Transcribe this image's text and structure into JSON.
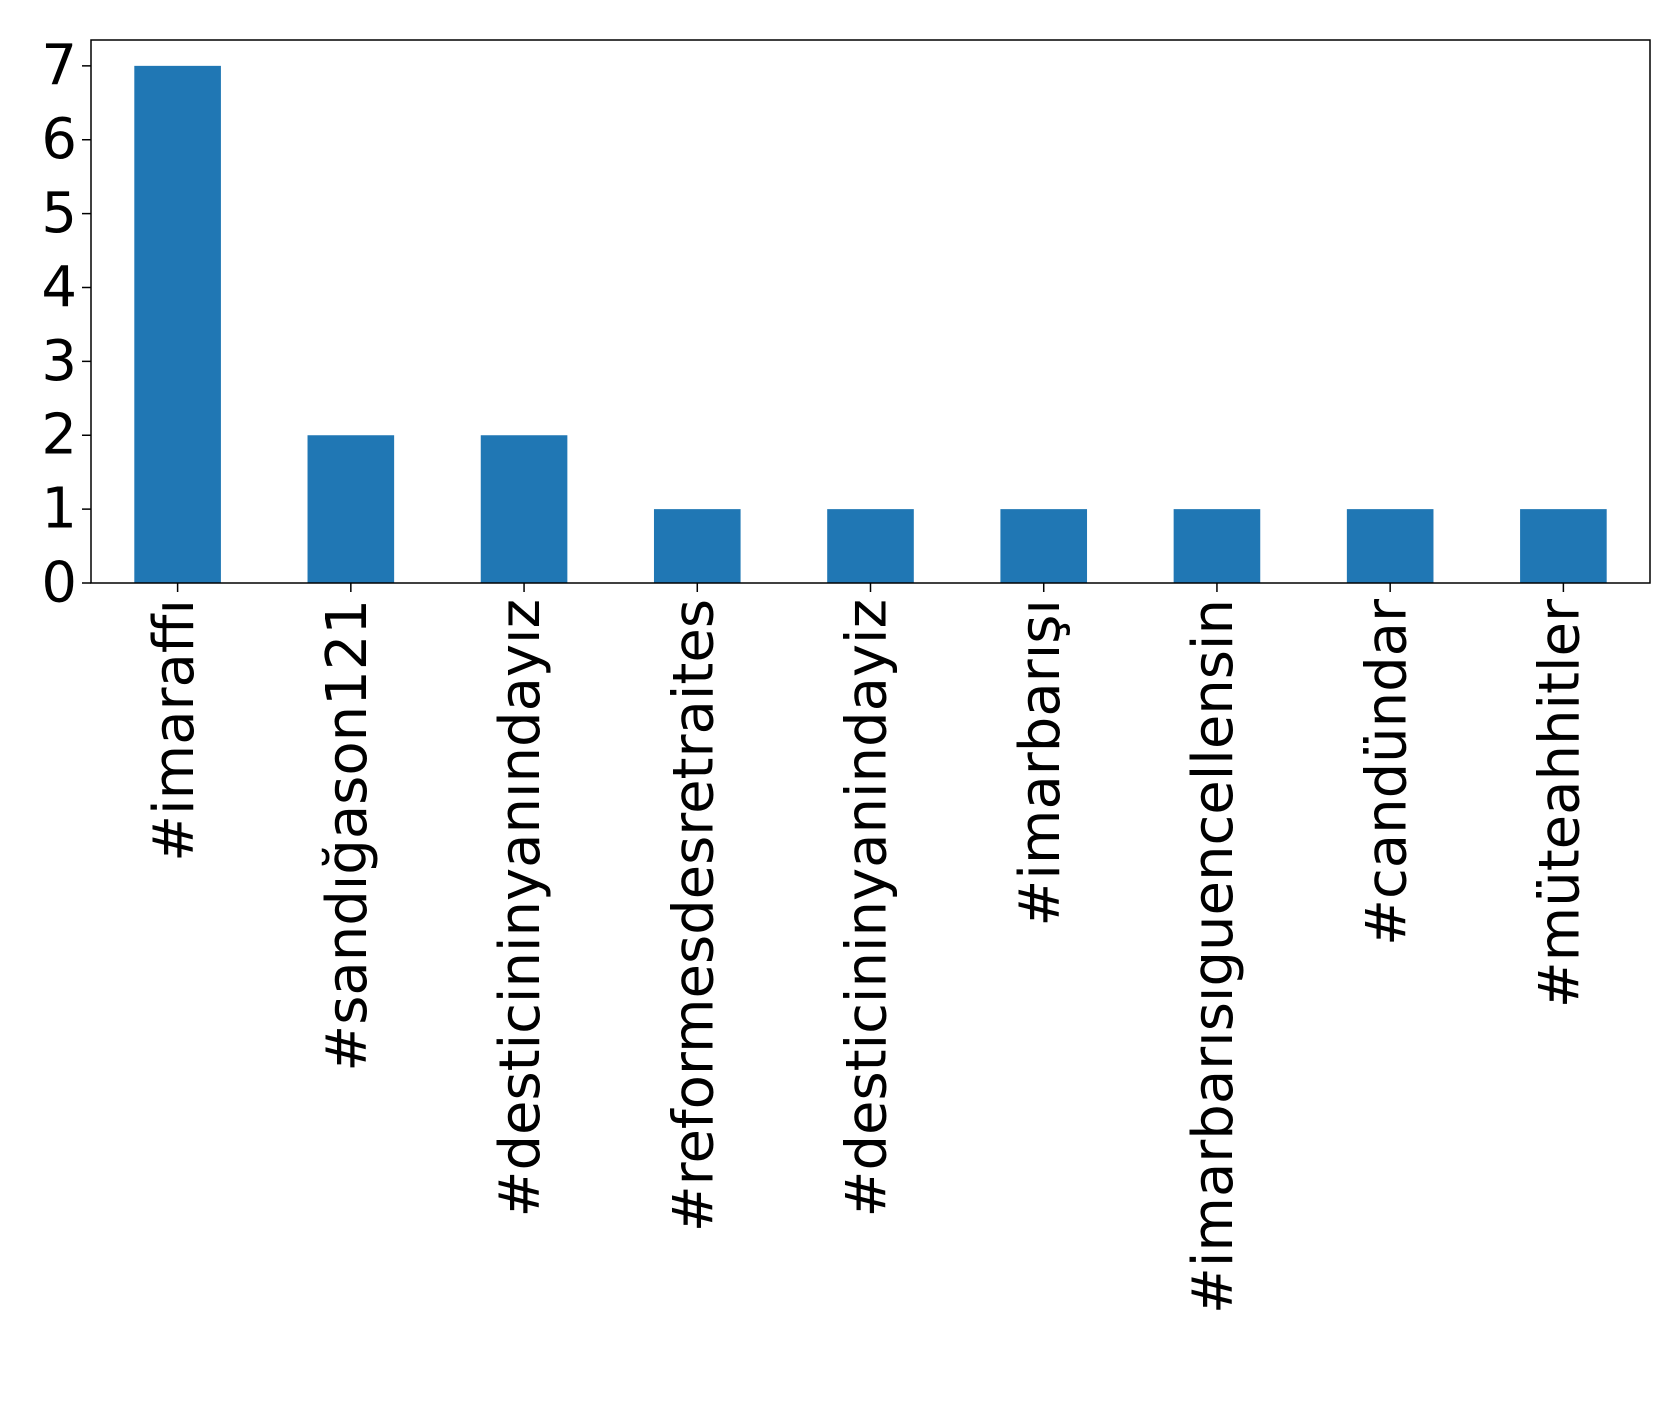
{
  "chart_data": {
    "type": "bar",
    "title": "",
    "xlabel": "",
    "ylabel": "",
    "categories": [
      "#imaraffı",
      "#sandığason121",
      "#desticininyanındayız",
      "#reformesdesretraites",
      "#desticininyanindayiz",
      "#imarbarışı",
      "#imarbarısıguencellensin",
      "#candündar",
      "#müteahhitler"
    ],
    "values": [
      7,
      2,
      2,
      1,
      1,
      1,
      1,
      1,
      1
    ],
    "ylim": [
      0,
      7.35
    ],
    "yticks": [
      "0",
      "1",
      "2",
      "3",
      "4",
      "5",
      "6",
      "7"
    ],
    "grid": false,
    "legend": "none",
    "bar_color": "#2077b4"
  }
}
